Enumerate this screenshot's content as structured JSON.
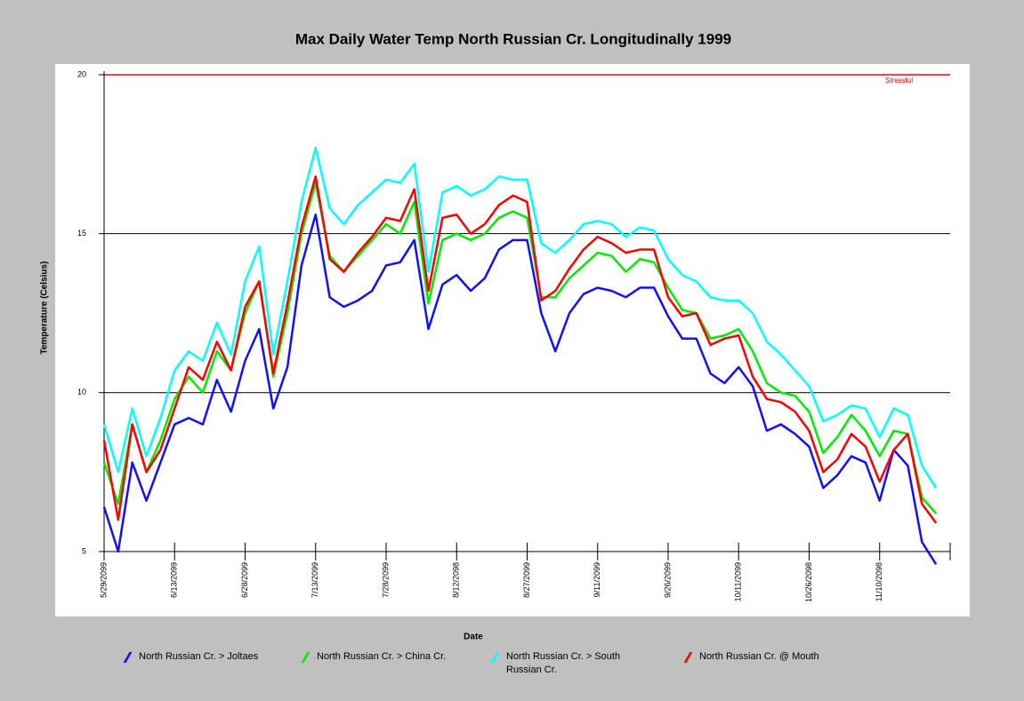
{
  "chart_data": {
    "type": "line",
    "title": "Max Daily Water Temp North Russian Cr. Longitudinally 1999",
    "x_label": "Date",
    "y_label": "Temperature (Celsius)",
    "categories": [
      "5/29/2099",
      null,
      null,
      null,
      null,
      "6/13/2099",
      null,
      null,
      null,
      null,
      "6/28/2099",
      null,
      null,
      null,
      null,
      "7/13/2099",
      null,
      null,
      null,
      null,
      "7/28/2099",
      null,
      null,
      null,
      null,
      "8/12/2098",
      null,
      null,
      null,
      null,
      "8/27/2099",
      null,
      null,
      null,
      null,
      "9/11/2099",
      null,
      null,
      null,
      null,
      "9/26/2099",
      null,
      null,
      null,
      null,
      "10/11/2099",
      null,
      null,
      null,
      null,
      "10/26/2098",
      null,
      null,
      null,
      null,
      "11/10/2098",
      null,
      null,
      null,
      null,
      null
    ],
    "series": [
      {
        "name": "North Russian Cr. > Joltaes",
        "color": "#1010ff",
        "values": [
          6.4,
          5.0,
          7.8,
          6.6,
          7.8,
          9.0,
          9.2,
          9.0,
          10.4,
          9.4,
          11.0,
          12.0,
          9.5,
          10.8,
          14.0,
          15.6,
          13.0,
          12.7,
          12.9,
          13.2,
          14.0,
          14.1,
          14.8,
          12.0,
          13.4,
          13.7,
          13.2,
          13.6,
          14.5,
          14.8,
          14.8,
          12.5,
          11.3,
          12.5,
          13.1,
          13.3,
          13.2,
          13.0,
          13.3,
          13.3,
          12.4,
          11.7,
          11.7,
          10.6,
          10.3,
          10.8,
          10.2,
          8.8,
          9.0,
          8.7,
          8.3,
          7.0,
          7.4,
          8.0,
          7.8,
          6.6,
          8.2,
          7.7,
          5.3,
          4.6,
          null
        ]
      },
      {
        "name": "North Russian Cr. > China Cr.",
        "color": "#00ee00",
        "values": [
          7.8,
          6.5,
          9.0,
          7.5,
          8.5,
          9.8,
          10.5,
          10.0,
          11.3,
          10.7,
          12.5,
          13.5,
          10.5,
          12.5,
          15.0,
          16.6,
          14.3,
          13.8,
          14.3,
          14.8,
          15.3,
          15.0,
          16.0,
          12.8,
          14.8,
          15.0,
          14.8,
          15.0,
          15.5,
          15.7,
          15.5,
          13.0,
          13.0,
          13.6,
          14.0,
          14.4,
          14.3,
          13.8,
          14.2,
          14.1,
          13.3,
          12.6,
          12.5,
          11.7,
          11.8,
          12.0,
          11.3,
          10.3,
          10.0,
          9.9,
          9.4,
          8.1,
          8.6,
          9.3,
          8.8,
          8.0,
          8.8,
          8.7,
          6.7,
          6.2,
          null
        ]
      },
      {
        "name": "North Russian Cr. > South Russian Cr.",
        "color": "#00ffff",
        "values": [
          9.0,
          7.5,
          9.5,
          8.0,
          9.2,
          10.7,
          11.3,
          11.0,
          12.2,
          11.2,
          13.5,
          14.6,
          11.2,
          13.5,
          16.0,
          17.7,
          15.8,
          15.3,
          15.9,
          16.3,
          16.7,
          16.6,
          17.2,
          13.8,
          16.3,
          16.5,
          16.2,
          16.4,
          16.8,
          16.7,
          16.7,
          14.7,
          14.4,
          14.8,
          15.3,
          15.4,
          15.3,
          14.9,
          15.2,
          15.1,
          14.2,
          13.7,
          13.5,
          13.0,
          12.9,
          12.9,
          12.5,
          11.6,
          11.2,
          10.7,
          10.2,
          9.1,
          9.3,
          9.6,
          9.5,
          8.6,
          9.5,
          9.3,
          7.7,
          7.0,
          null
        ]
      },
      {
        "name": "North Russian Cr. @ Mouth",
        "color": "#ff0000",
        "values": [
          8.5,
          6.0,
          9.0,
          7.5,
          8.2,
          9.5,
          10.8,
          10.4,
          11.6,
          10.7,
          12.7,
          13.5,
          10.6,
          12.8,
          15.2,
          16.8,
          14.2,
          13.8,
          14.4,
          14.9,
          15.5,
          15.4,
          16.4,
          13.2,
          15.5,
          15.6,
          15.0,
          15.3,
          15.9,
          16.2,
          16.0,
          12.9,
          13.2,
          13.9,
          14.5,
          14.9,
          14.7,
          14.4,
          14.5,
          14.5,
          13.0,
          12.4,
          12.5,
          11.5,
          11.7,
          11.8,
          10.5,
          9.8,
          9.7,
          9.4,
          8.8,
          7.5,
          7.9,
          8.7,
          8.3,
          7.2,
          8.2,
          8.7,
          6.5,
          5.9,
          null
        ]
      }
    ],
    "ylim": [
      5,
      20
    ],
    "yticks": [
      5,
      10,
      15,
      20
    ],
    "grid": true,
    "threshold": {
      "value": 20,
      "label": "Stressful",
      "color": "#ff0000"
    }
  }
}
